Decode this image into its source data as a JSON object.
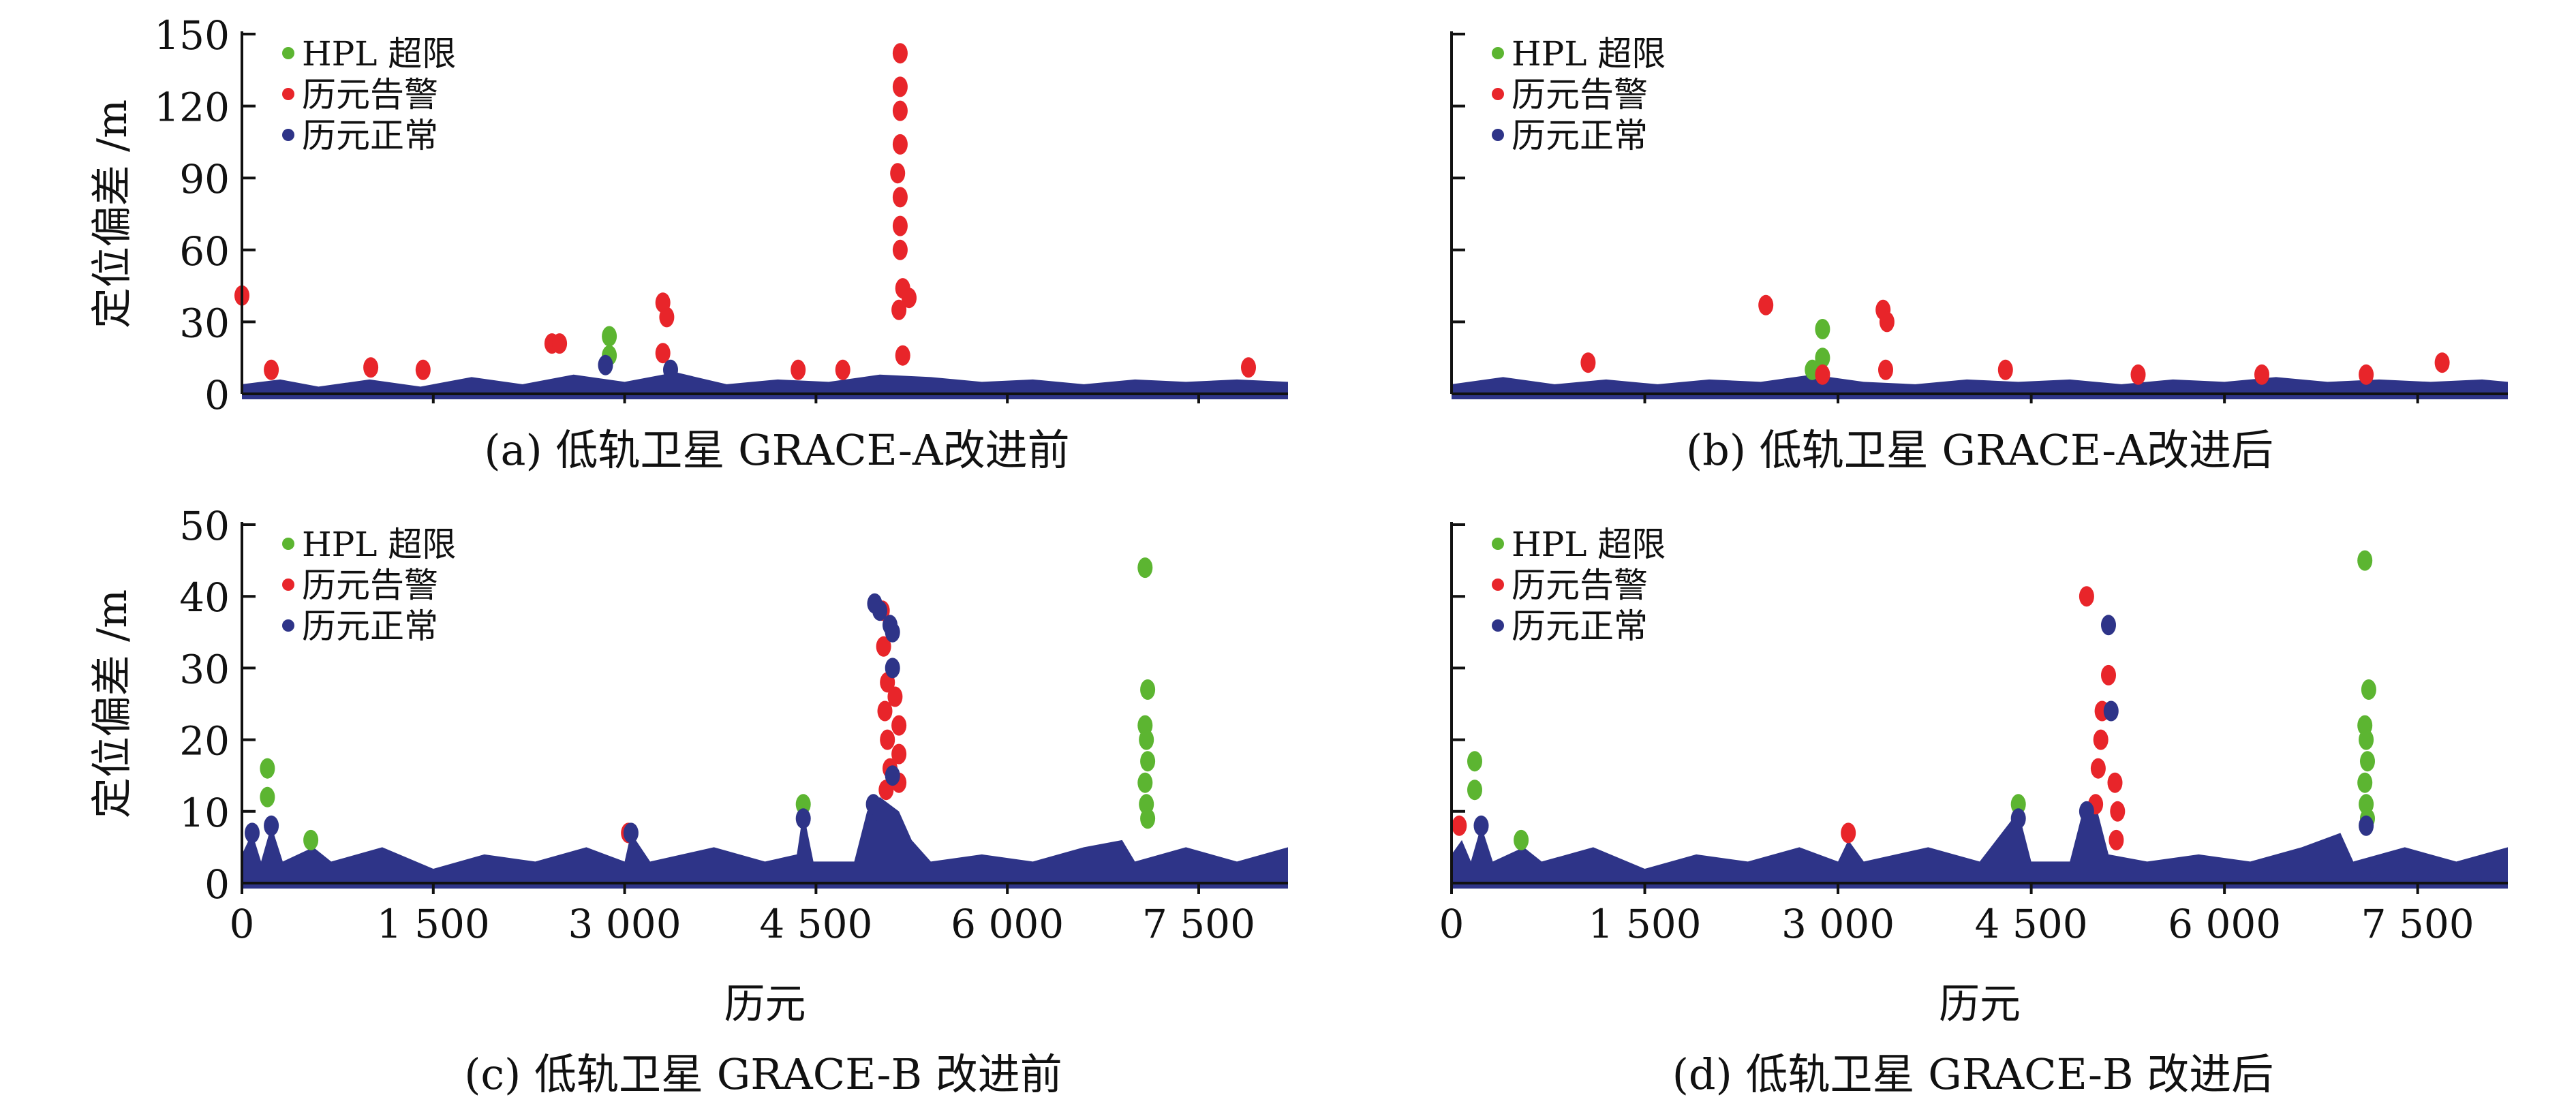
{
  "chart_data": [
    {
      "id": "a",
      "type": "scatter",
      "caption": "(a) 低轨卫星 GRACE-A改进前",
      "ylabel": "定位偏差 /m",
      "xlabel": "",
      "xlim": [
        0,
        8200
      ],
      "ylim": [
        0,
        150
      ],
      "yticks": [
        0,
        30,
        60,
        90,
        120,
        150
      ],
      "ytick_labels": [
        "0",
        "30",
        "60",
        "90",
        "120",
        "150"
      ],
      "xtick_labels_shown": false,
      "legend": {
        "position": "top-left",
        "entries": [
          "HPL 超限",
          "历元告警",
          "历元正常"
        ]
      },
      "colors": {
        "hpl": "#5cb531",
        "alarm": "#e8252a",
        "normal": "#2e3488"
      },
      "normal_band": [
        [
          0,
          4
        ],
        [
          300,
          6
        ],
        [
          600,
          3
        ],
        [
          1000,
          6
        ],
        [
          1400,
          3
        ],
        [
          1800,
          7
        ],
        [
          2200,
          4
        ],
        [
          2600,
          8
        ],
        [
          3000,
          5
        ],
        [
          3400,
          9
        ],
        [
          3800,
          4
        ],
        [
          4200,
          6
        ],
        [
          4600,
          5
        ],
        [
          5000,
          8
        ],
        [
          5400,
          7
        ],
        [
          5800,
          5
        ],
        [
          6200,
          6
        ],
        [
          6600,
          4
        ],
        [
          7000,
          6
        ],
        [
          7400,
          5
        ],
        [
          7800,
          6
        ],
        [
          8200,
          5
        ]
      ],
      "series": [
        {
          "name": "HPL 超限",
          "points": [
            [
              2880,
              24
            ],
            [
              2880,
              16
            ]
          ]
        },
        {
          "name": "历元告警",
          "points": [
            [
              0,
              41
            ],
            [
              230,
              10
            ],
            [
              1010,
              11
            ],
            [
              1420,
              10
            ],
            [
              2430,
              21
            ],
            [
              2490,
              21
            ],
            [
              3300,
              38
            ],
            [
              3330,
              32
            ],
            [
              3300,
              17
            ],
            [
              4360,
              10
            ],
            [
              4710,
              10
            ],
            [
              5160,
              142
            ],
            [
              5160,
              128
            ],
            [
              5160,
              118
            ],
            [
              5160,
              104
            ],
            [
              5140,
              92
            ],
            [
              5160,
              82
            ],
            [
              5160,
              70
            ],
            [
              5160,
              60
            ],
            [
              5180,
              44
            ],
            [
              5150,
              35
            ],
            [
              5230,
              40
            ],
            [
              5180,
              16
            ],
            [
              7890,
              11
            ]
          ]
        },
        {
          "name": "历元正常",
          "points": [
            [
              2850,
              12
            ],
            [
              3360,
              10
            ]
          ]
        }
      ]
    },
    {
      "id": "b",
      "type": "scatter",
      "caption": "(b) 低轨卫星 GRACE-A改进后",
      "ylabel": "",
      "xlabel": "",
      "xlim": [
        0,
        8200
      ],
      "ylim": [
        0,
        150
      ],
      "yticks": [
        0,
        30,
        60,
        90,
        120,
        150
      ],
      "ytick_labels": [],
      "xtick_labels_shown": false,
      "legend": {
        "position": "top-left",
        "entries": [
          "HPL 超限",
          "历元告警",
          "历元正常"
        ]
      },
      "colors": {
        "hpl": "#5cb531",
        "alarm": "#e8252a",
        "normal": "#2e3488"
      },
      "normal_band": [
        [
          0,
          4
        ],
        [
          400,
          7
        ],
        [
          800,
          4
        ],
        [
          1200,
          6
        ],
        [
          1600,
          4
        ],
        [
          2000,
          6
        ],
        [
          2400,
          5
        ],
        [
          2800,
          8
        ],
        [
          3200,
          5
        ],
        [
          3600,
          4
        ],
        [
          4000,
          6
        ],
        [
          4400,
          5
        ],
        [
          4800,
          6
        ],
        [
          5200,
          4
        ],
        [
          5600,
          6
        ],
        [
          6000,
          5
        ],
        [
          6400,
          7
        ],
        [
          6800,
          5
        ],
        [
          7200,
          6
        ],
        [
          7600,
          5
        ],
        [
          8000,
          6
        ],
        [
          8200,
          5
        ]
      ],
      "series": [
        {
          "name": "HPL 超限",
          "points": [
            [
              2880,
              27
            ],
            [
              2880,
              15
            ],
            [
              2800,
              10
            ]
          ]
        },
        {
          "name": "历元告警",
          "points": [
            [
              2440,
              37
            ],
            [
              3350,
              35
            ],
            [
              3380,
              30
            ],
            [
              3370,
              10
            ],
            [
              1060,
              13
            ],
            [
              4300,
              10
            ],
            [
              5330,
              8
            ],
            [
              6290,
              8
            ],
            [
              7100,
              8
            ],
            [
              7690,
              13
            ],
            [
              2880,
              8
            ]
          ]
        },
        {
          "name": "历元正常",
          "points": []
        }
      ]
    },
    {
      "id": "c",
      "type": "scatter",
      "caption": "(c) 低轨卫星 GRACE-B 改进前",
      "ylabel": "定位偏差 /m",
      "xlabel": "历元",
      "xlim": [
        0,
        8200
      ],
      "ylim": [
        0,
        50
      ],
      "yticks": [
        0,
        10,
        20,
        30,
        40,
        50
      ],
      "ytick_labels": [
        "0",
        "10",
        "20",
        "30",
        "40",
        "50"
      ],
      "xticks": [
        0,
        1500,
        3000,
        4500,
        6000,
        7500
      ],
      "xtick_labels": [
        "0",
        "1 500",
        "3 000",
        "4 500",
        "6 000",
        "7 500"
      ],
      "xtick_labels_shown": true,
      "legend": {
        "position": "top-left",
        "entries": [
          "HPL 超限",
          "历元告警",
          "历元正常"
        ]
      },
      "colors": {
        "hpl": "#5cb531",
        "alarm": "#e8252a",
        "normal": "#2e3488"
      },
      "normal_band": [
        [
          0,
          4
        ],
        [
          80,
          7
        ],
        [
          150,
          3
        ],
        [
          230,
          8
        ],
        [
          320,
          3
        ],
        [
          560,
          5
        ],
        [
          700,
          3
        ],
        [
          1100,
          5
        ],
        [
          1500,
          2
        ],
        [
          1900,
          4
        ],
        [
          2300,
          3
        ],
        [
          2700,
          5
        ],
        [
          3000,
          3
        ],
        [
          3050,
          7
        ],
        [
          3200,
          3
        ],
        [
          3700,
          5
        ],
        [
          4100,
          3
        ],
        [
          4350,
          4
        ],
        [
          4400,
          10
        ],
        [
          4480,
          3
        ],
        [
          4800,
          3
        ],
        [
          4900,
          10
        ],
        [
          5000,
          12
        ],
        [
          5150,
          10
        ],
        [
          5250,
          6
        ],
        [
          5400,
          3
        ],
        [
          5800,
          4
        ],
        [
          6200,
          3
        ],
        [
          6600,
          5
        ],
        [
          6900,
          6
        ],
        [
          7000,
          3
        ],
        [
          7400,
          5
        ],
        [
          7800,
          3
        ],
        [
          8200,
          5
        ]
      ],
      "series": [
        {
          "name": "HPL 超限",
          "points": [
            [
              200,
              16
            ],
            [
              200,
              12
            ],
            [
              540,
              6
            ],
            [
              4400,
              11
            ],
            [
              7080,
              44
            ],
            [
              7100,
              27
            ],
            [
              7080,
              22
            ],
            [
              7090,
              20
            ],
            [
              7100,
              17
            ],
            [
              7080,
              14
            ],
            [
              7090,
              11
            ],
            [
              7100,
              9
            ]
          ]
        },
        {
          "name": "历元告警",
          "points": [
            [
              3030,
              7
            ],
            [
              5030,
              33
            ],
            [
              5060,
              28
            ],
            [
              5040,
              24
            ],
            [
              5060,
              20
            ],
            [
              5080,
              16
            ],
            [
              5050,
              13
            ],
            [
              5120,
              26
            ],
            [
              5150,
              22
            ],
            [
              5150,
              18
            ],
            [
              5150,
              14
            ],
            [
              5020,
              38
            ]
          ]
        },
        {
          "name": "历元正常",
          "points": [
            [
              4960,
              39
            ],
            [
              5000,
              38
            ],
            [
              5080,
              36
            ],
            [
              5100,
              35
            ],
            [
              5100,
              30
            ],
            [
              5100,
              15
            ],
            [
              4950,
              11
            ],
            [
              5000,
              10
            ],
            [
              80,
              7
            ],
            [
              230,
              8
            ],
            [
              3050,
              7
            ],
            [
              4400,
              9
            ]
          ]
        }
      ]
    },
    {
      "id": "d",
      "type": "scatter",
      "caption": "(d) 低轨卫星 GRACE-B 改进后",
      "ylabel": "",
      "xlabel": "历元",
      "xlim": [
        0,
        8200
      ],
      "ylim": [
        0,
        50
      ],
      "yticks": [
        0,
        10,
        20,
        30,
        40,
        50
      ],
      "ytick_labels": [],
      "xticks": [
        0,
        1500,
        3000,
        4500,
        6000,
        7500
      ],
      "xtick_labels": [
        "0",
        "1 500",
        "3 000",
        "4 500",
        "6 000",
        "7 500"
      ],
      "xtick_labels_shown": true,
      "legend": {
        "position": "top-left",
        "entries": [
          "HPL 超限",
          "历元告警",
          "历元正常"
        ]
      },
      "colors": {
        "hpl": "#5cb531",
        "alarm": "#e8252a",
        "normal": "#2e3488"
      },
      "normal_band": [
        [
          0,
          4
        ],
        [
          80,
          6
        ],
        [
          150,
          3
        ],
        [
          230,
          8
        ],
        [
          320,
          3
        ],
        [
          560,
          5
        ],
        [
          700,
          3
        ],
        [
          1100,
          5
        ],
        [
          1500,
          2
        ],
        [
          1900,
          4
        ],
        [
          2300,
          3
        ],
        [
          2700,
          5
        ],
        [
          3000,
          3
        ],
        [
          3080,
          6
        ],
        [
          3200,
          3
        ],
        [
          3700,
          5
        ],
        [
          4100,
          3
        ],
        [
          4400,
          10
        ],
        [
          4500,
          3
        ],
        [
          4800,
          3
        ],
        [
          4900,
          10
        ],
        [
          5000,
          11
        ],
        [
          5100,
          4
        ],
        [
          5400,
          3
        ],
        [
          5800,
          4
        ],
        [
          6200,
          3
        ],
        [
          6600,
          5
        ],
        [
          6900,
          7
        ],
        [
          7000,
          3
        ],
        [
          7400,
          5
        ],
        [
          7800,
          3
        ],
        [
          8200,
          5
        ]
      ],
      "series": [
        {
          "name": "HPL 超限",
          "points": [
            [
              180,
              17
            ],
            [
              180,
              13
            ],
            [
              540,
              6
            ],
            [
              4400,
              11
            ],
            [
              7090,
              45
            ],
            [
              7120,
              27
            ],
            [
              7090,
              22
            ],
            [
              7100,
              20
            ],
            [
              7110,
              17
            ],
            [
              7090,
              14
            ],
            [
              7100,
              11
            ],
            [
              7110,
              9
            ]
          ]
        },
        {
          "name": "历元告警",
          "points": [
            [
              60,
              8
            ],
            [
              3080,
              7
            ],
            [
              4930,
              40
            ],
            [
              5100,
              29
            ],
            [
              5050,
              24
            ],
            [
              5040,
              20
            ],
            [
              5020,
              16
            ],
            [
              5000,
              11
            ],
            [
              5150,
              14
            ],
            [
              5170,
              10
            ],
            [
              5160,
              6
            ]
          ]
        },
        {
          "name": "历元正常",
          "points": [
            [
              5100,
              36
            ],
            [
              5120,
              24
            ],
            [
              4930,
              10
            ],
            [
              230,
              8
            ],
            [
              4400,
              9
            ],
            [
              7100,
              8
            ]
          ]
        }
      ]
    }
  ]
}
